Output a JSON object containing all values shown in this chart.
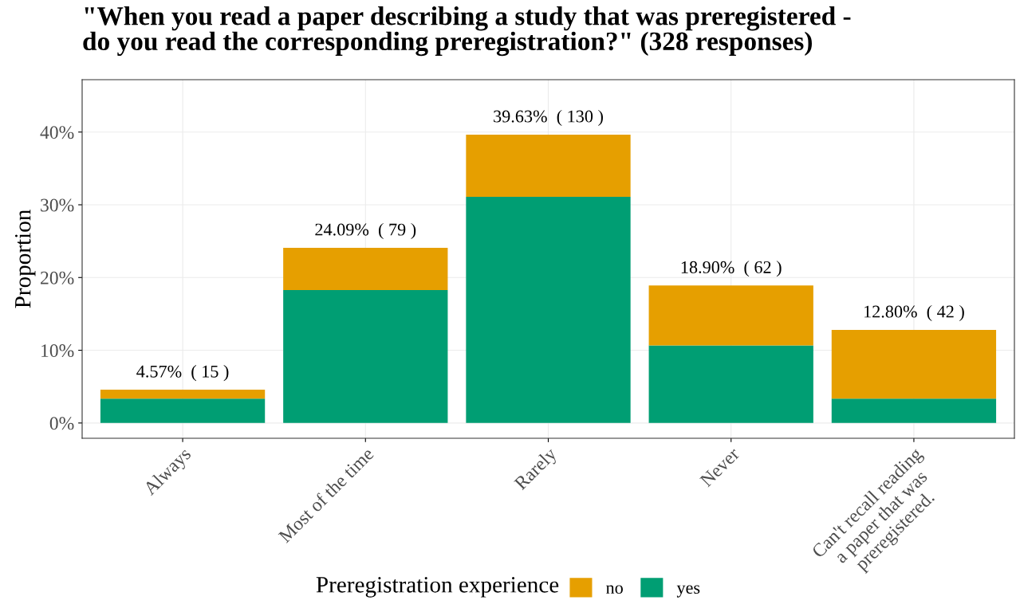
{
  "chart_data": {
    "type": "bar",
    "stacked": true,
    "title": "\"When you read a paper describing a study that was preregistered -\ndo you read the corresponding preregistration?\" (328 responses)",
    "ylabel": "Proportion",
    "legend_title": "Preregistration experience",
    "legend": "bottom",
    "grid": true,
    "categories": [
      "Always",
      "Most of the time",
      "Rarely",
      "Never",
      "Can't recall reading\na paper that was\npreregistered."
    ],
    "series": [
      {
        "name": "yes",
        "color": "#009e73",
        "values": [
          3.35,
          18.29,
          31.1,
          10.67,
          3.35
        ]
      },
      {
        "name": "no",
        "color": "#e69f00",
        "values": [
          1.22,
          5.79,
          8.54,
          8.23,
          9.45
        ]
      }
    ],
    "totals": [
      "4.57%  ( 15 )",
      "24.09%  ( 79 )",
      "39.63%  ( 130 )",
      "18.90%  ( 62 )",
      "12.80%  ( 42 )"
    ],
    "ylim": [
      -2.1,
      47.2
    ],
    "yticks": [
      {
        "value": 0,
        "label": "0%"
      },
      {
        "value": 10,
        "label": "10%"
      },
      {
        "value": 20,
        "label": "20%"
      },
      {
        "value": 30,
        "label": "30%"
      },
      {
        "value": 40,
        "label": "40%"
      }
    ]
  }
}
